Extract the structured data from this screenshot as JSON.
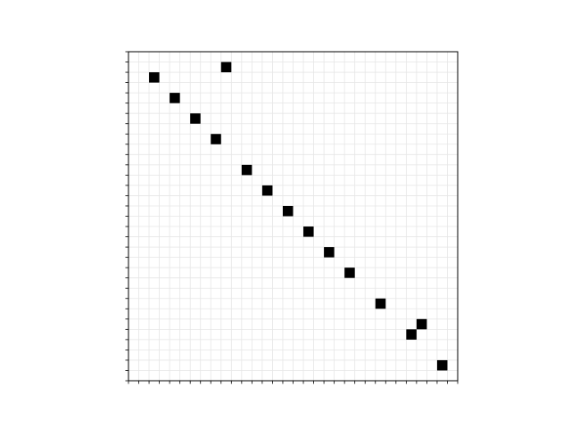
{
  "chart_data": {
    "type": "heatmap",
    "title": "",
    "xlabel": "",
    "ylabel": "",
    "grid": true,
    "n_cols": 32,
    "n_rows": 32,
    "xlim": [
      0,
      32
    ],
    "ylim": [
      0,
      32
    ],
    "x_tick_labels_shown": false,
    "y_tick_labels_shown": false,
    "filled_cells": [
      {
        "row": 1,
        "col": 9
      },
      {
        "row": 2,
        "col": 2
      },
      {
        "row": 4,
        "col": 4
      },
      {
        "row": 6,
        "col": 6
      },
      {
        "row": 8,
        "col": 8
      },
      {
        "row": 11,
        "col": 11
      },
      {
        "row": 13,
        "col": 13
      },
      {
        "row": 15,
        "col": 15
      },
      {
        "row": 17,
        "col": 17
      },
      {
        "row": 19,
        "col": 19
      },
      {
        "row": 21,
        "col": 21
      },
      {
        "row": 24,
        "col": 24
      },
      {
        "row": 26,
        "col": 28
      },
      {
        "row": 27,
        "col": 27
      },
      {
        "row": 30,
        "col": 30
      }
    ],
    "colors": {
      "filled": "#000000",
      "grid": "#e6e6e6",
      "frame": "#000000",
      "background": "#ffffff"
    }
  }
}
